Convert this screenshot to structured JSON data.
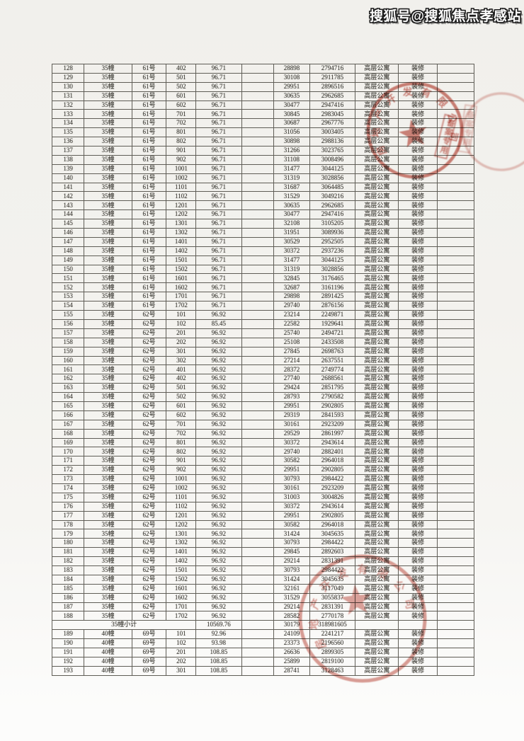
{
  "page": {
    "watermark": "搜狐号@搜狐焦点孝感站"
  },
  "table": {
    "rows": [
      [
        "128",
        "35幢",
        "61号",
        "402",
        "96.71",
        "",
        "28898",
        "2794716",
        "高层公寓",
        "装修",
        ""
      ],
      [
        "129",
        "35幢",
        "61号",
        "501",
        "96.71",
        "",
        "30108",
        "2911785",
        "高层公寓",
        "装修",
        ""
      ],
      [
        "130",
        "35幢",
        "61号",
        "502",
        "96.71",
        "",
        "29951",
        "2896516",
        "高层公寓",
        "装修",
        ""
      ],
      [
        "131",
        "35幢",
        "61号",
        "601",
        "96.71",
        "",
        "30635",
        "2962685",
        "高层公寓",
        "装修",
        ""
      ],
      [
        "132",
        "35幢",
        "61号",
        "602",
        "96.71",
        "",
        "30477",
        "2947416",
        "高层公寓",
        "装修",
        ""
      ],
      [
        "133",
        "35幢",
        "61号",
        "701",
        "96.71",
        "",
        "30845",
        "2983045",
        "高层公寓",
        "装修",
        ""
      ],
      [
        "134",
        "35幢",
        "61号",
        "702",
        "96.71",
        "",
        "30687",
        "2967776",
        "高层公寓",
        "装修",
        ""
      ],
      [
        "135",
        "35幢",
        "61号",
        "801",
        "96.71",
        "",
        "31056",
        "3003405",
        "高层公寓",
        "装修",
        ""
      ],
      [
        "136",
        "35幢",
        "61号",
        "802",
        "96.71",
        "",
        "30898",
        "2988136",
        "高层公寓",
        "装修",
        ""
      ],
      [
        "137",
        "35幢",
        "61号",
        "901",
        "96.71",
        "",
        "31266",
        "3023765",
        "高层公寓",
        "装修",
        ""
      ],
      [
        "138",
        "35幢",
        "61号",
        "902",
        "96.71",
        "",
        "31108",
        "3008496",
        "高层公寓",
        "装修",
        ""
      ],
      [
        "139",
        "35幢",
        "61号",
        "1001",
        "96.71",
        "",
        "31477",
        "3044125",
        "高层公寓",
        "装修",
        ""
      ],
      [
        "140",
        "35幢",
        "61号",
        "1002",
        "96.71",
        "",
        "31319",
        "3028856",
        "高层公寓",
        "装修",
        ""
      ],
      [
        "141",
        "35幢",
        "61号",
        "1101",
        "96.71",
        "",
        "31687",
        "3064485",
        "高层公寓",
        "装修",
        ""
      ],
      [
        "142",
        "35幢",
        "61号",
        "1102",
        "96.71",
        "",
        "31529",
        "3049216",
        "高层公寓",
        "装修",
        ""
      ],
      [
        "143",
        "35幢",
        "61号",
        "1201",
        "96.71",
        "",
        "30635",
        "2962685",
        "高层公寓",
        "装修",
        ""
      ],
      [
        "144",
        "35幢",
        "61号",
        "1202",
        "96.71",
        "",
        "30477",
        "2947416",
        "高层公寓",
        "装修",
        ""
      ],
      [
        "145",
        "35幢",
        "61号",
        "1301",
        "96.71",
        "",
        "32108",
        "3105205",
        "高层公寓",
        "装修",
        ""
      ],
      [
        "146",
        "35幢",
        "61号",
        "1302",
        "96.71",
        "",
        "31951",
        "3089936",
        "高层公寓",
        "装修",
        ""
      ],
      [
        "147",
        "35幢",
        "61号",
        "1401",
        "96.71",
        "",
        "30529",
        "2952505",
        "高层公寓",
        "装修",
        ""
      ],
      [
        "148",
        "35幢",
        "61号",
        "1402",
        "96.71",
        "",
        "30372",
        "2937236",
        "高层公寓",
        "装修",
        ""
      ],
      [
        "149",
        "35幢",
        "61号",
        "1501",
        "96.71",
        "",
        "31477",
        "3044125",
        "高层公寓",
        "装修",
        ""
      ],
      [
        "150",
        "35幢",
        "61号",
        "1502",
        "96.71",
        "",
        "31319",
        "3028856",
        "高层公寓",
        "装修",
        ""
      ],
      [
        "151",
        "35幢",
        "61号",
        "1601",
        "96.71",
        "",
        "32845",
        "3176465",
        "高层公寓",
        "装修",
        ""
      ],
      [
        "152",
        "35幢",
        "61号",
        "1602",
        "96.71",
        "",
        "32687",
        "3161196",
        "高层公寓",
        "装修",
        ""
      ],
      [
        "153",
        "35幢",
        "61号",
        "1701",
        "96.71",
        "",
        "29898",
        "2891425",
        "高层公寓",
        "装修",
        ""
      ],
      [
        "154",
        "35幢",
        "61号",
        "1702",
        "96.71",
        "",
        "29740",
        "2876156",
        "高层公寓",
        "装修",
        ""
      ],
      [
        "155",
        "35幢",
        "62号",
        "101",
        "96.92",
        "",
        "23214",
        "2249871",
        "高层公寓",
        "装修",
        ""
      ],
      [
        "156",
        "35幢",
        "62号",
        "102",
        "85.45",
        "",
        "22582",
        "1929641",
        "高层公寓",
        "装修",
        ""
      ],
      [
        "157",
        "35幢",
        "62号",
        "201",
        "96.92",
        "",
        "25740",
        "2494721",
        "高层公寓",
        "装修",
        ""
      ],
      [
        "158",
        "35幢",
        "62号",
        "202",
        "96.92",
        "",
        "25108",
        "2433508",
        "高层公寓",
        "装修",
        ""
      ],
      [
        "159",
        "35幢",
        "62号",
        "301",
        "96.92",
        "",
        "27845",
        "2698763",
        "高层公寓",
        "装修",
        ""
      ],
      [
        "160",
        "35幢",
        "62号",
        "302",
        "96.92",
        "",
        "27214",
        "2637551",
        "高层公寓",
        "装修",
        ""
      ],
      [
        "161",
        "35幢",
        "62号",
        "401",
        "96.92",
        "",
        "28372",
        "2749774",
        "高层公寓",
        "装修",
        ""
      ],
      [
        "162",
        "35幢",
        "62号",
        "402",
        "96.92",
        "",
        "27740",
        "2688561",
        "高层公寓",
        "装修",
        ""
      ],
      [
        "163",
        "35幢",
        "62号",
        "501",
        "96.92",
        "",
        "29424",
        "2851795",
        "高层公寓",
        "装修",
        ""
      ],
      [
        "164",
        "35幢",
        "62号",
        "502",
        "96.92",
        "",
        "28793",
        "2790582",
        "高层公寓",
        "装修",
        ""
      ],
      [
        "165",
        "35幢",
        "62号",
        "601",
        "96.92",
        "",
        "29951",
        "2902805",
        "高层公寓",
        "装修",
        ""
      ],
      [
        "166",
        "35幢",
        "62号",
        "602",
        "96.92",
        "",
        "29319",
        "2841593",
        "高层公寓",
        "装修",
        ""
      ],
      [
        "167",
        "35幢",
        "62号",
        "701",
        "96.92",
        "",
        "30161",
        "2923209",
        "高层公寓",
        "装修",
        ""
      ],
      [
        "168",
        "35幢",
        "62号",
        "702",
        "96.92",
        "",
        "29529",
        "2861997",
        "高层公寓",
        "装修",
        ""
      ],
      [
        "169",
        "35幢",
        "62号",
        "801",
        "96.92",
        "",
        "30372",
        "2943614",
        "高层公寓",
        "装修",
        ""
      ],
      [
        "170",
        "35幢",
        "62号",
        "802",
        "96.92",
        "",
        "29740",
        "2882401",
        "高层公寓",
        "装修",
        ""
      ],
      [
        "171",
        "35幢",
        "62号",
        "901",
        "96.92",
        "",
        "30582",
        "2964018",
        "高层公寓",
        "装修",
        ""
      ],
      [
        "172",
        "35幢",
        "62号",
        "902",
        "96.92",
        "",
        "29951",
        "2902805",
        "高层公寓",
        "装修",
        ""
      ],
      [
        "173",
        "35幢",
        "62号",
        "1001",
        "96.92",
        "",
        "30793",
        "2984422",
        "高层公寓",
        "装修",
        ""
      ],
      [
        "174",
        "35幢",
        "62号",
        "1002",
        "96.92",
        "",
        "30161",
        "2923209",
        "高层公寓",
        "装修",
        ""
      ],
      [
        "175",
        "35幢",
        "62号",
        "1101",
        "96.92",
        "",
        "31003",
        "3004826",
        "高层公寓",
        "装修",
        ""
      ],
      [
        "176",
        "35幢",
        "62号",
        "1102",
        "96.92",
        "",
        "30372",
        "2943614",
        "高层公寓",
        "装修",
        ""
      ],
      [
        "177",
        "35幢",
        "62号",
        "1201",
        "96.92",
        "",
        "29951",
        "2902805",
        "高层公寓",
        "装修",
        ""
      ],
      [
        "178",
        "35幢",
        "62号",
        "1202",
        "96.92",
        "",
        "30582",
        "2964018",
        "高层公寓",
        "装修",
        ""
      ],
      [
        "179",
        "35幢",
        "62号",
        "1301",
        "96.92",
        "",
        "31424",
        "3045635",
        "高层公寓",
        "装修",
        ""
      ],
      [
        "180",
        "35幢",
        "62号",
        "1302",
        "96.92",
        "",
        "30793",
        "2984422",
        "高层公寓",
        "装修",
        ""
      ],
      [
        "181",
        "35幢",
        "62号",
        "1401",
        "96.92",
        "",
        "29845",
        "2892603",
        "高层公寓",
        "装修",
        ""
      ],
      [
        "182",
        "35幢",
        "62号",
        "1402",
        "96.92",
        "",
        "29214",
        "2831391",
        "高层公寓",
        "装修",
        ""
      ],
      [
        "183",
        "35幢",
        "62号",
        "1501",
        "96.92",
        "",
        "30793",
        "2984422",
        "高层公寓",
        "装修",
        ""
      ],
      [
        "184",
        "35幢",
        "62号",
        "1502",
        "96.92",
        "",
        "31424",
        "3045635",
        "高层公寓",
        "装修",
        ""
      ],
      [
        "185",
        "35幢",
        "62号",
        "1601",
        "96.92",
        "",
        "32161",
        "3117049",
        "高层公寓",
        "装修",
        ""
      ],
      [
        "186",
        "35幢",
        "62号",
        "1602",
        "96.92",
        "",
        "31529",
        "3055837",
        "高层公寓",
        "装修",
        ""
      ],
      [
        "187",
        "35幢",
        "62号",
        "1701",
        "96.92",
        "",
        "29214",
        "2831391",
        "高层公寓",
        "装修",
        ""
      ],
      [
        "188",
        "35幢",
        "62号",
        "1702",
        "96.92",
        "",
        "28582",
        "2770178",
        "高层公寓",
        "装修",
        ""
      ],
      {
        "subtotal": true,
        "label": "35幢小计",
        "area": "10569.76",
        "price": "30179",
        "total": "318981605"
      },
      [
        "189",
        "40幢",
        "69号",
        "101",
        "92.96",
        "",
        "24109",
        "2241217",
        "高层公寓",
        "装修",
        ""
      ],
      [
        "190",
        "40幢",
        "69号",
        "102",
        "93.98",
        "",
        "23373",
        "2196560",
        "高层公寓",
        "装修",
        ""
      ],
      [
        "191",
        "40幢",
        "69号",
        "201",
        "108.85",
        "",
        "26636",
        "2899305",
        "高层公寓",
        "装修",
        ""
      ],
      [
        "192",
        "40幢",
        "69号",
        "202",
        "108.85",
        "",
        "25899",
        "2819100",
        "高层公寓",
        "装修",
        ""
      ],
      [
        "193",
        "40幢",
        "69号",
        "301",
        "108.85",
        "",
        "28741",
        "3128463",
        "高层公寓",
        "装修",
        ""
      ]
    ]
  },
  "stamps": {
    "color": "#ba4234",
    "top_seal": {
      "arc_text": "房地产开发有限公司",
      "cartouche_text": "备案专用"
    },
    "right_seal": {
      "cartouche_text": "备案专用"
    },
    "bottom_seal": {
      "arc_text": "房地产开发有限公司"
    }
  }
}
